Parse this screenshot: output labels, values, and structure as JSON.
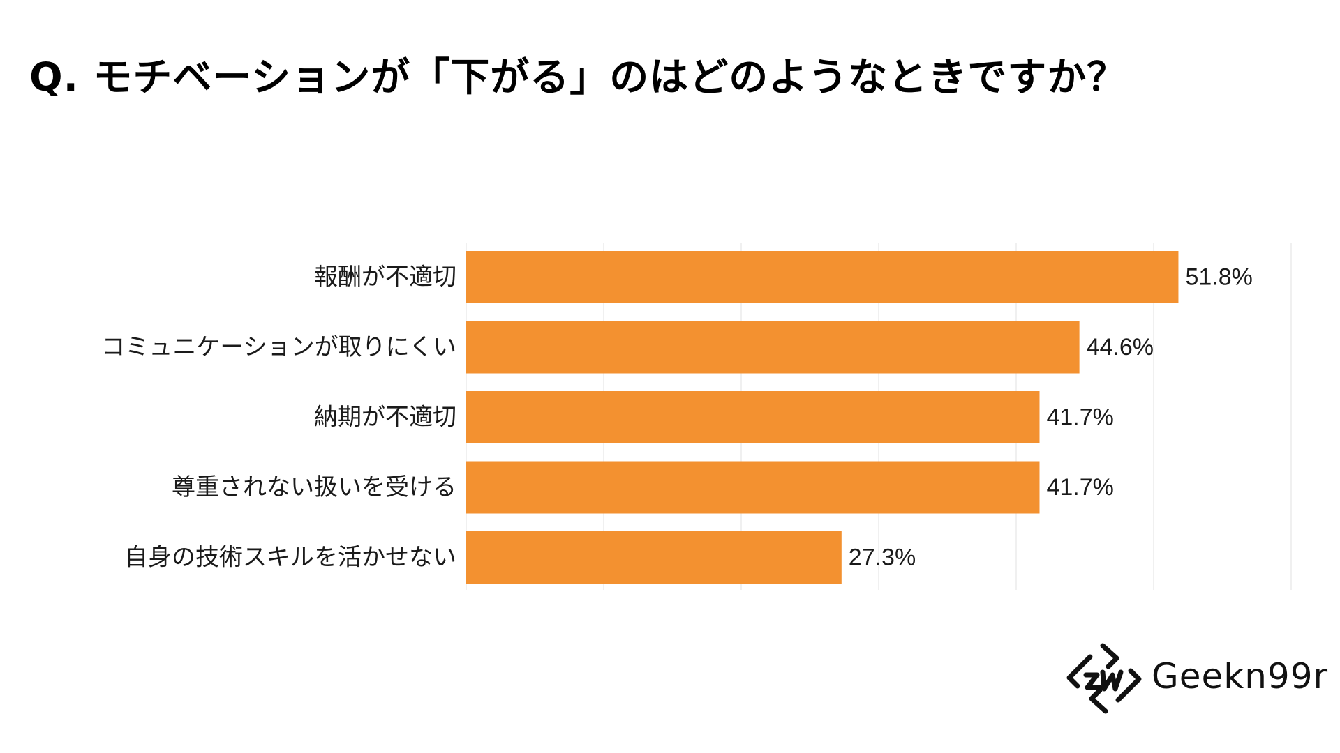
{
  "title": "Q. モチベーションが「下がる」のはどのようなときですか？",
  "colors": {
    "bar": "#F39130",
    "grid": "#EBEBEB",
    "text": "#1A1A1A"
  },
  "logo": {
    "text": "Geekn99r",
    "icon": "geekneer-logo-icon"
  },
  "chart_data": {
    "type": "bar",
    "orientation": "horizontal",
    "categories": [
      "報酬が不適切",
      "コミュニケーションが取りにくい",
      "納期が不適切",
      "尊重されない扱いを受ける",
      "自身の技術スキルを活かせない"
    ],
    "values": [
      51.8,
      44.6,
      41.7,
      41.7,
      27.3
    ],
    "value_labels": [
      "51.8%",
      "44.6%",
      "41.7%",
      "41.7%",
      "27.3%"
    ],
    "unit": "%",
    "xlim": [
      0,
      60
    ],
    "grid": true,
    "legend": "none",
    "xlabel": "",
    "ylabel": ""
  }
}
